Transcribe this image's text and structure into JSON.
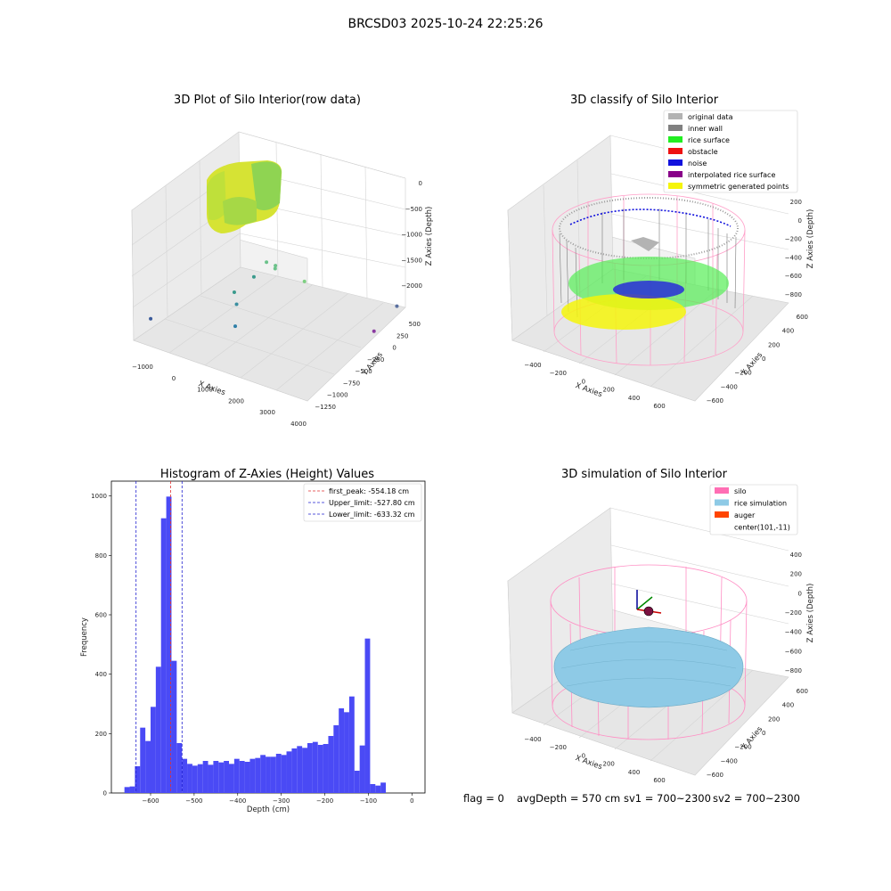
{
  "figure": {
    "suptitle": "BRCSD03 2025-10-24 22:25:26",
    "status": {
      "flag": "flag = 0",
      "avg_depth": "avgDepth = 570 cm",
      "sv1": "sv1 = 700~2300",
      "sv2": "sv2 = 700~2300"
    }
  },
  "colors": {
    "histogram_bar": "#4a4af5",
    "first_peak": "#e03030",
    "limit": "#2020d0",
    "original_data": "#b3b3b3",
    "inner_wall": "#808080",
    "rice_surface": "#22ee22",
    "obstacle": "#ee1111",
    "noise": "#1111dd",
    "interpolated": "#880088",
    "symmetric": "#f5f50a",
    "silo": "#ff6eb4",
    "rice_simulation": "#8ecae6",
    "auger": "#ff4500",
    "pane": "#efefef",
    "grid": "#d0d0d0"
  },
  "chart_data": [
    {
      "id": "raw",
      "type": "scatter",
      "title": "3D Plot of Silo Interior(row data)",
      "xlabel": "X Axies",
      "ylabel": "Y Axies",
      "zlabel": "Z Axies (Depth)",
      "x_ticks": [
        "−1000",
        "0",
        "1000",
        "2000",
        "3000",
        "4000"
      ],
      "y_ticks": [
        "−1250",
        "−1000",
        "−750",
        "−500",
        "−250",
        "0",
        "250",
        "500"
      ],
      "z_ticks": [
        "0",
        "−500",
        "−1000",
        "−1500",
        "−2000"
      ],
      "xlim": [
        -1200,
        4000
      ],
      "ylim": [
        -1300,
        600
      ],
      "zlim": [
        -2300,
        100
      ],
      "outliers": [
        {
          "x": 700,
          "y": -200,
          "z": -1500,
          "color": "#3a9a8c"
        },
        {
          "x": 500,
          "y": -450,
          "z": -1650,
          "color": "#3a9a8c"
        },
        {
          "x": 800,
          "y": -600,
          "z": -1700,
          "color": "#3b8fa0"
        },
        {
          "x": 1300,
          "y": -950,
          "z": -1750,
          "color": "#2f7fa8"
        },
        {
          "x": 1000,
          "y": -150,
          "z": -1200,
          "color": "#6cc28a"
        },
        {
          "x": 1500,
          "y": -300,
          "z": -1050,
          "color": "#6cc28a"
        },
        {
          "x": 1800,
          "y": -500,
          "z": -900,
          "color": "#6cc28a"
        },
        {
          "x": 2600,
          "y": -450,
          "z": -1000,
          "color": "#7ecf82"
        },
        {
          "x": -1000,
          "y": -1100,
          "z": -2000,
          "color": "#3a5a9a"
        },
        {
          "x": 3900,
          "y": 500,
          "z": -1850,
          "color": "#5a70a0"
        },
        {
          "x": 3600,
          "y": 250,
          "z": -2200,
          "color": "#8a3aa0"
        }
      ]
    },
    {
      "id": "classify",
      "type": "scatter",
      "title": "3D classify of Silo Interior",
      "xlabel": "X Axies",
      "ylabel": "Y Axies",
      "zlabel": "Z Axies (Depth)",
      "x_ticks": [
        "−400",
        "−200",
        "0",
        "200",
        "400",
        "600"
      ],
      "y_ticks": [
        "−600",
        "−400",
        "−200",
        "0",
        "200",
        "400",
        "600"
      ],
      "z_ticks": [
        "200",
        "0",
        "−200",
        "−400",
        "−600",
        "−800"
      ],
      "legend": [
        {
          "label": "original data",
          "color": "#b3b3b3"
        },
        {
          "label": "inner wall",
          "color": "#808080"
        },
        {
          "label": "rice surface",
          "color": "#22ee22"
        },
        {
          "label": "obstacle",
          "color": "#ee1111"
        },
        {
          "label": "noise",
          "color": "#1111dd"
        },
        {
          "label": "interpolated rice surface",
          "color": "#880088"
        },
        {
          "label": "symmetric generated points",
          "color": "#f5f50a"
        }
      ]
    },
    {
      "id": "hist",
      "type": "bar",
      "title": "Histogram of Z-Axies (Height) Values",
      "xlabel": "Depth (cm)",
      "ylabel": "Frequency",
      "xlim": [
        -690,
        30
      ],
      "ylim": [
        0,
        1050
      ],
      "x_ticks": [
        -600,
        -500,
        -400,
        -300,
        -200,
        -100,
        0
      ],
      "x_tick_labels": [
        "−600",
        "−500",
        "−400",
        "−300",
        "−200",
        "−100",
        "0"
      ],
      "y_ticks": [
        0,
        200,
        400,
        600,
        800,
        1000
      ],
      "bin_start": -660,
      "bin_width": 12,
      "values": [
        20,
        22,
        90,
        220,
        175,
        290,
        425,
        925,
        998,
        445,
        168,
        115,
        98,
        92,
        97,
        108,
        95,
        108,
        103,
        108,
        98,
        115,
        108,
        105,
        115,
        118,
        128,
        122,
        122,
        132,
        128,
        140,
        150,
        158,
        152,
        168,
        172,
        162,
        165,
        192,
        228,
        285,
        272,
        325,
        75,
        160,
        520,
        30,
        25,
        35
      ],
      "vlines": [
        {
          "x": -554.18,
          "label": "first_peak: -554.18 cm",
          "color": "#e03030"
        },
        {
          "x": -527.8,
          "label": "Upper_limit: -527.80 cm",
          "color": "#2020d0"
        },
        {
          "x": -633.32,
          "label": "Lower_limit: -633.32 cm",
          "color": "#2020d0"
        }
      ]
    },
    {
      "id": "sim",
      "type": "scatter",
      "title": "3D simulation of Silo Interior",
      "xlabel": "X Axies",
      "ylabel": "Y Axies",
      "zlabel": "Z Axies (Depth)",
      "x_ticks": [
        "−400",
        "−200",
        "0",
        "200",
        "400",
        "600"
      ],
      "y_ticks": [
        "−600",
        "−400",
        "−200",
        "0",
        "200",
        "400",
        "600"
      ],
      "z_ticks": [
        "400",
        "200",
        "0",
        "−200",
        "−400",
        "−600",
        "−800"
      ],
      "legend": [
        {
          "label": "silo",
          "color": "#ff6eb4"
        },
        {
          "label": "rice simulation",
          "color": "#8ecae6"
        },
        {
          "label": "auger",
          "color": "#ff4500"
        },
        {
          "label": "center(101,-11)",
          "color": ""
        }
      ]
    }
  ]
}
